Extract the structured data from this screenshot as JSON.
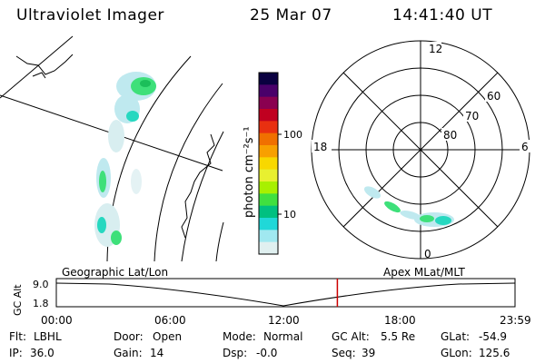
{
  "header": {
    "instrument": "Ultraviolet Imager",
    "date": "25 Mar 07",
    "time": "14:41:40 UT"
  },
  "colorbar": {
    "unit_label": "photon cm⁻²s⁻¹",
    "ticks": [
      "100",
      "10"
    ],
    "colors": [
      "#0a0040",
      "#4a006a",
      "#8a0050",
      "#c00020",
      "#e83010",
      "#f07000",
      "#f8a000",
      "#f8d800",
      "#e8f030",
      "#a8f000",
      "#40e040",
      "#00c080",
      "#20d8d8",
      "#a0e8f0",
      "#e0f0f0"
    ]
  },
  "polar": {
    "mlt_labels": {
      "top": "12",
      "left": "18",
      "right": "6",
      "bottom": "0"
    },
    "lat_labels": [
      "60",
      "70",
      "80"
    ]
  },
  "timeline": {
    "left_caption": "Geographic Lat/Lon",
    "right_caption": "Apex MLat/MLT",
    "y_axis_label": "GC Alt",
    "y_ticks": [
      "9.0",
      "1.8"
    ],
    "x_ticks": [
      "00:00",
      "06:00",
      "12:00",
      "18:00",
      "23:59"
    ],
    "current_time": "14:41:40",
    "current_marker_color": "#cc0000"
  },
  "info": {
    "filter": {
      "label": "Flt:",
      "value": "LBHL"
    },
    "ip": {
      "label": "IP:",
      "value": "36.0"
    },
    "door": {
      "label": "Door:",
      "value": "Open"
    },
    "gain": {
      "label": "Gain:",
      "value": "14"
    },
    "mode": {
      "label": "Mode:",
      "value": "Normal"
    },
    "dsp": {
      "label": "Dsp:",
      "value": "-0.0"
    },
    "gc_alt": {
      "label": "GC Alt:",
      "value": "5.5 Re"
    },
    "seq": {
      "label": "Seq:",
      "value": "39"
    },
    "glat": {
      "label": "GLat:",
      "value": "-54.9"
    },
    "glon": {
      "label": "GLon:",
      "value": "125.6"
    }
  }
}
